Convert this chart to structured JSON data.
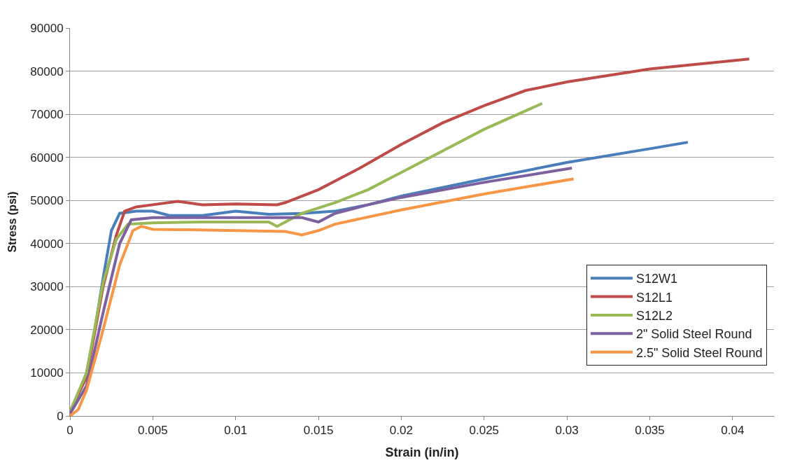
{
  "chart_data": {
    "type": "line",
    "xlabel": "Strain (in/in)",
    "ylabel": "Stress (psi)",
    "xlim": [
      0,
      0.0425
    ],
    "xticks": [
      0,
      0.005,
      0.01,
      0.015,
      0.02,
      0.025,
      0.03,
      0.035,
      0.04
    ],
    "ylim": [
      0,
      90000
    ],
    "yticks": [
      0,
      10000,
      20000,
      30000,
      40000,
      50000,
      60000,
      70000,
      80000,
      90000
    ],
    "grid": "y",
    "legend": "right",
    "marker": "none",
    "line_style": "solid",
    "series": [
      {
        "name": "S12W1",
        "color": "#4a7ebb",
        "x": [
          0,
          0.0005,
          0.001,
          0.0015,
          0.002,
          0.0025,
          0.003,
          0.004,
          0.005,
          0.006,
          0.008,
          0.01,
          0.012,
          0.014,
          0.016,
          0.018,
          0.02,
          0.025,
          0.03,
          0.035,
          0.0373
        ],
        "values": [
          1000,
          5000,
          10000,
          20000,
          32000,
          43000,
          47000,
          47500,
          47500,
          46500,
          46500,
          47500,
          46800,
          47000,
          47500,
          49000,
          51000,
          55000,
          58800,
          62000,
          63500
        ]
      },
      {
        "name": "S12L1",
        "color": "#be4b48",
        "x": [
          0,
          0.001,
          0.002,
          0.0028,
          0.0033,
          0.004,
          0.005,
          0.0065,
          0.008,
          0.01,
          0.0125,
          0.013,
          0.015,
          0.0175,
          0.02,
          0.0225,
          0.025,
          0.0275,
          0.03,
          0.035,
          0.041
        ],
        "values": [
          1000,
          9000,
          30000,
          42000,
          47500,
          48500,
          49000,
          49800,
          49000,
          49200,
          49000,
          49500,
          52500,
          57500,
          63000,
          68000,
          72000,
          75500,
          77500,
          80500,
          82800
        ]
      },
      {
        "name": "S12L2",
        "color": "#98b954",
        "x": [
          0,
          0.001,
          0.002,
          0.0028,
          0.0035,
          0.005,
          0.008,
          0.011,
          0.012,
          0.0125,
          0.013,
          0.014,
          0.016,
          0.018,
          0.02,
          0.0225,
          0.025,
          0.0285
        ],
        "values": [
          1000,
          10000,
          31000,
          41000,
          44500,
          44800,
          45000,
          45000,
          45000,
          44000,
          45000,
          47000,
          49500,
          52500,
          56500,
          61500,
          66500,
          72500
        ]
      },
      {
        "name": "2\" Solid Steel Round",
        "color": "#7d60a0",
        "x": [
          0,
          0.001,
          0.002,
          0.003,
          0.0037,
          0.005,
          0.008,
          0.012,
          0.014,
          0.015,
          0.016,
          0.018,
          0.02,
          0.025,
          0.0303
        ],
        "values": [
          500,
          7000,
          24000,
          40000,
          45500,
          46000,
          46000,
          46000,
          46000,
          45000,
          47000,
          49000,
          50700,
          54200,
          57500
        ]
      },
      {
        "name": "2.5\" Solid Steel Round",
        "color": "#f79646",
        "x": [
          0,
          0.0005,
          0.001,
          0.002,
          0.003,
          0.0038,
          0.0043,
          0.005,
          0.007,
          0.01,
          0.013,
          0.014,
          0.015,
          0.016,
          0.02,
          0.025,
          0.0304
        ],
        "values": [
          0,
          1500,
          6000,
          20000,
          35000,
          43000,
          44000,
          43300,
          43200,
          43000,
          42800,
          42000,
          43000,
          44500,
          47800,
          51500,
          55000
        ]
      }
    ]
  }
}
